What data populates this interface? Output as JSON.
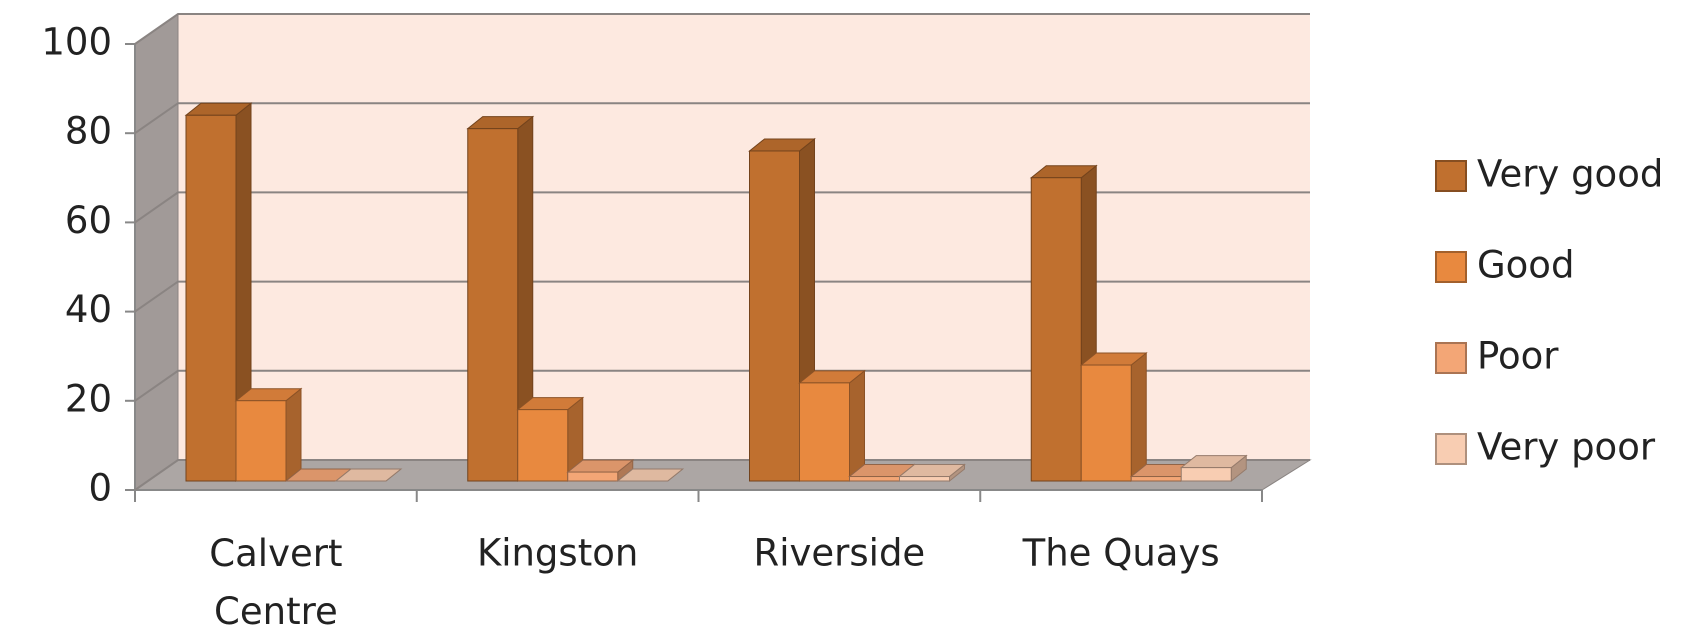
{
  "chart_data": {
    "type": "bar3d",
    "categories": [
      "Calvert Centre",
      "Kingston",
      "Riverside",
      "The Quays"
    ],
    "series": [
      {
        "name": "Very good",
        "color": "#c0702f",
        "values": [
          82,
          79,
          74,
          68
        ]
      },
      {
        "name": "Good",
        "color": "#e8893f",
        "values": [
          18,
          16,
          22,
          26
        ]
      },
      {
        "name": "Poor",
        "color": "#f3a676",
        "values": [
          0,
          2,
          1,
          1
        ]
      },
      {
        "name": "Very poor",
        "color": "#f8cdb2",
        "values": [
          0,
          0,
          1,
          3
        ]
      }
    ],
    "ylim": [
      0,
      100
    ],
    "yticks": [
      0,
      20,
      40,
      60,
      80,
      100
    ],
    "grid": true,
    "legend": "right"
  }
}
